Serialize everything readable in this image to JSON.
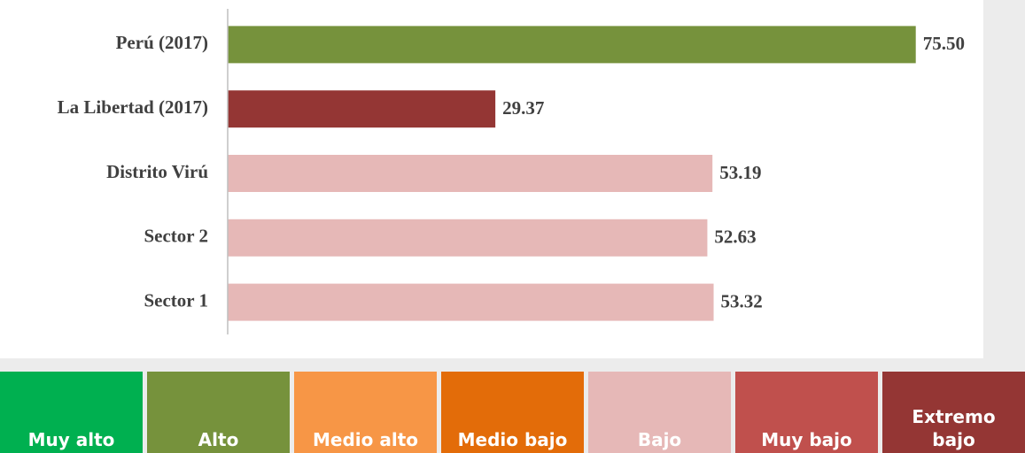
{
  "chart_data": {
    "type": "hbar",
    "categories": [
      "Perú (2017)",
      "La Libertad (2017)",
      "Distrito Virú",
      "Sector 2",
      "Sector 1"
    ],
    "values": [
      75.5,
      29.37,
      53.19,
      52.63,
      53.32
    ],
    "value_labels": [
      "75.50",
      "29.37",
      "53.19",
      "52.63",
      "53.32"
    ],
    "colors": [
      "#76923c",
      "#943634",
      "#e6b8b7",
      "#e6b8b7",
      "#e6b8b7"
    ],
    "xlim": [
      0,
      80
    ],
    "scale": [
      {
        "label": "Muy alto",
        "color": "#00b050"
      },
      {
        "label": "Alto",
        "color": "#76923c"
      },
      {
        "label": "Medio alto",
        "color": "#f79646"
      },
      {
        "label": "Medio bajo",
        "color": "#e36c09"
      },
      {
        "label": "Bajo",
        "color": "#e6b8b7"
      },
      {
        "label": "Muy bajo",
        "color": "#c0504d"
      },
      {
        "label": "Extremo bajo",
        "color": "#943634"
      }
    ]
  }
}
